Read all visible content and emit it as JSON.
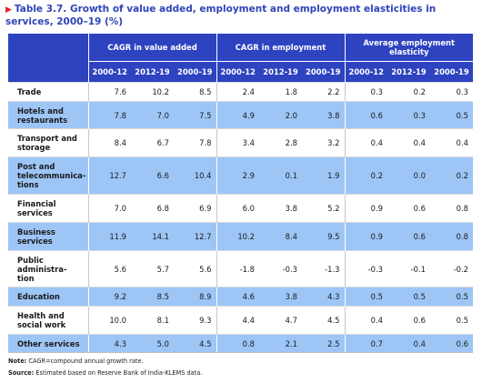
{
  "title": {
    "marker": "▶",
    "text": "Table 3.7. Growth of value added, employment and employment elasticities in services, 2000–19 (%)"
  },
  "groups": [
    "CAGR in value added",
    "CAGR in employment",
    "Average employment elasticity"
  ],
  "periods": [
    "2000-12",
    "2012-19",
    "2000-19"
  ],
  "rows": [
    {
      "label": "Trade",
      "values": [
        "7.6",
        "10.2",
        "8.5",
        "2.4",
        "1.8",
        "2.2",
        "0.3",
        "0.2",
        "0.3"
      ]
    },
    {
      "label": "Hotels and restaurants",
      "values": [
        "7.8",
        "7.0",
        "7.5",
        "4.9",
        "2.0",
        "3.8",
        "0.6",
        "0.3",
        "0.5"
      ]
    },
    {
      "label": "Transport and storage",
      "values": [
        "8.4",
        "6.7",
        "7.8",
        "3.4",
        "2.8",
        "3.2",
        "0.4",
        "0.4",
        "0.4"
      ]
    },
    {
      "label": "Post and telecommunica-tions",
      "values": [
        "12.7",
        "6.6",
        "10.4",
        "2.9",
        "0.1",
        "1.9",
        "0.2",
        "0.0",
        "0.2"
      ]
    },
    {
      "label": "Financial services",
      "values": [
        "7.0",
        "6.8",
        "6.9",
        "6.0",
        "3.8",
        "5.2",
        "0.9",
        "0.6",
        "0.8"
      ]
    },
    {
      "label": "Business services",
      "values": [
        "11.9",
        "14.1",
        "12.7",
        "10.2",
        "8.4",
        "9.5",
        "0.9",
        "0.6",
        "0.8"
      ]
    },
    {
      "label": "Public administra-tion",
      "values": [
        "5.6",
        "5.7",
        "5.6",
        "-1.8",
        "-0.3",
        "-1.3",
        "-0.3",
        "-0.1",
        "-0.2"
      ]
    },
    {
      "label": "Education",
      "values": [
        "9.2",
        "8.5",
        "8.9",
        "4.6",
        "3.8",
        "4.3",
        "0.5",
        "0.5",
        "0.5"
      ]
    },
    {
      "label": "Health and social work",
      "values": [
        "10.0",
        "8.1",
        "9.3",
        "4.4",
        "4.7",
        "4.5",
        "0.4",
        "0.6",
        "0.5"
      ]
    },
    {
      "label": "Other services",
      "values": [
        "4.3",
        "5.0",
        "4.5",
        "0.8",
        "2.1",
        "2.5",
        "0.7",
        "0.4",
        "0.6"
      ]
    }
  ],
  "notes": {
    "note_label": "Note:",
    "note_text": "CAGR=compound annual growth rate.",
    "source_label": "Source:",
    "source_text": "Estimated based on Reserve Bank of India-KLEMS data."
  },
  "colors": {
    "title": "#2e44b8",
    "marker": "#e8202a",
    "header_bg": "#2d43c0",
    "alt_row": "#9dc6f7"
  }
}
